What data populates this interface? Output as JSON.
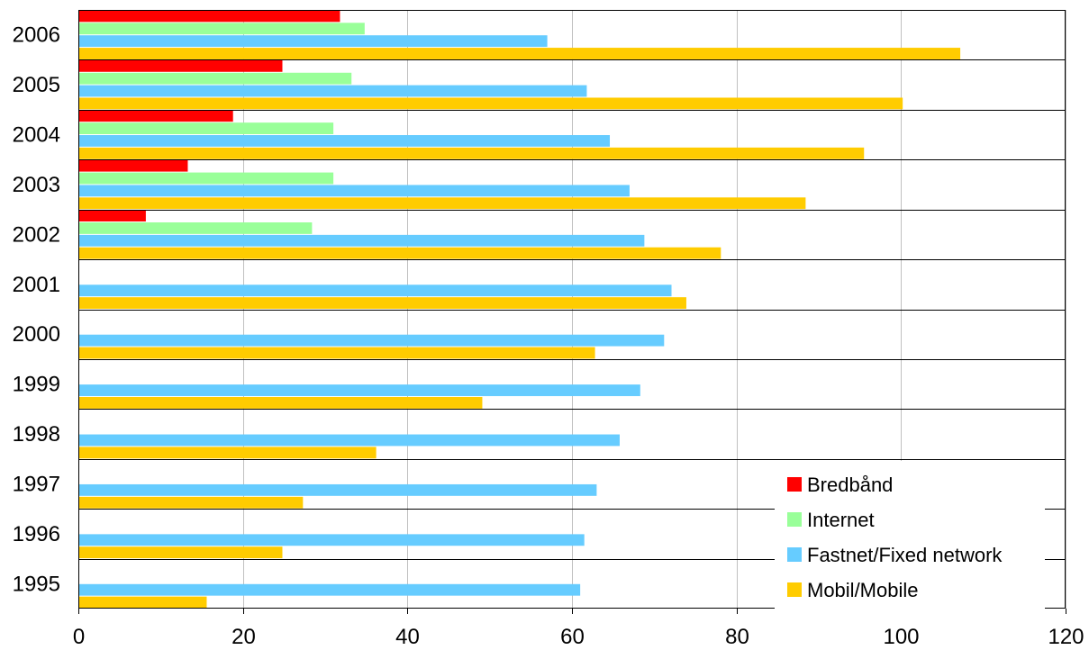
{
  "chart_data": {
    "type": "bar",
    "orientation": "horizontal",
    "categories": [
      "2006",
      "2005",
      "2004",
      "2003",
      "2002",
      "2001",
      "2000",
      "1999",
      "1998",
      "1997",
      "1996",
      "1995"
    ],
    "series": [
      {
        "name": "Bredbånd",
        "color": "#ff0000",
        "values": [
          31.8,
          24.8,
          18.8,
          13.3,
          8.2,
          null,
          null,
          null,
          null,
          null,
          null,
          null
        ]
      },
      {
        "name": "Internet",
        "color": "#99ff99",
        "values": [
          34.8,
          33.2,
          31.0,
          31.0,
          28.4,
          null,
          null,
          null,
          null,
          null,
          null,
          null
        ]
      },
      {
        "name": "Fastnet/Fixed network",
        "color": "#66ccff",
        "values": [
          57.0,
          61.8,
          64.6,
          67.0,
          68.8,
          72.1,
          71.2,
          68.3,
          65.8,
          63.0,
          61.5,
          61.0
        ]
      },
      {
        "name": "Mobil/Mobile",
        "color": "#ffcc00",
        "values": [
          107.2,
          100.2,
          95.5,
          88.4,
          78.1,
          73.9,
          62.8,
          49.1,
          36.2,
          27.3,
          24.8,
          15.6
        ]
      }
    ],
    "xlim": [
      0,
      120
    ],
    "xticks": [
      "0",
      "20",
      "40",
      "60",
      "80",
      "100",
      "120"
    ],
    "xgrid": true,
    "legend_position": "bottom-right"
  }
}
